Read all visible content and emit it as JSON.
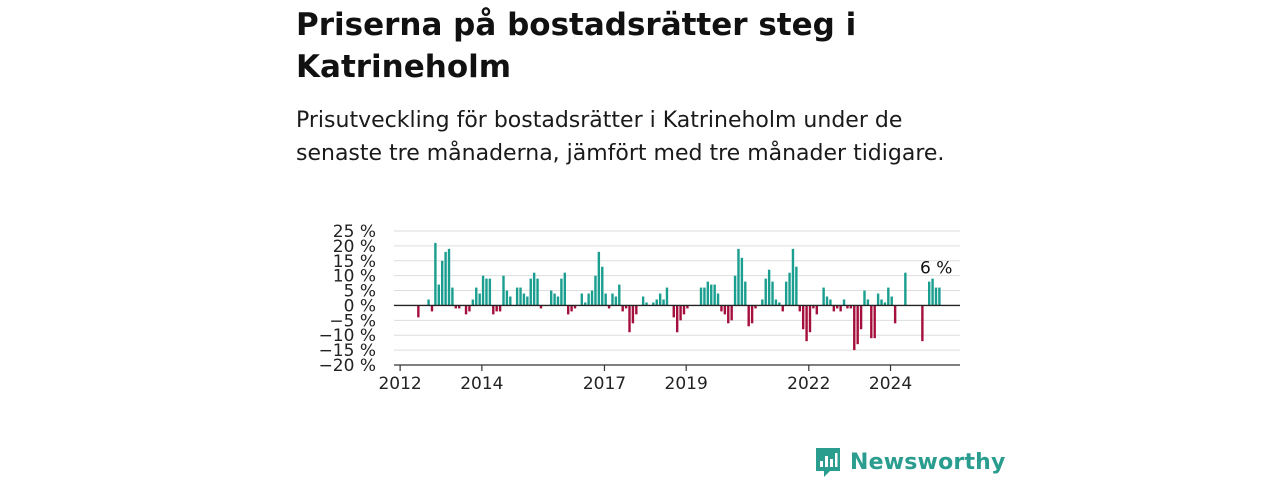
{
  "header": {
    "title": "Priserna på bostadsrätter steg i Katrineholm",
    "subtitle": "Prisutveckling för bostadsrätter i Katrineholm under de senaste tre månaderna, jämfört med tre månader tidigare."
  },
  "brand": {
    "name": "Newsworthy"
  },
  "colors": {
    "positive": "#1a9e8f",
    "negative": "#a50f3d",
    "axis": "#333333",
    "grid": "#dddddd",
    "brand": "#2a9d8f"
  },
  "chart_data": {
    "type": "bar",
    "ylim": [
      -20,
      25
    ],
    "y_ticks": [
      25,
      20,
      15,
      10,
      5,
      0,
      -5,
      -10,
      -15,
      -20
    ],
    "y_tick_labels": [
      "25 %",
      "20 %",
      "15 %",
      "10 %",
      "5 %",
      "0 %",
      "−5 %",
      "−10 %",
      "−15 %",
      "−20 %"
    ],
    "x_tick_labels": [
      {
        "label": "2012",
        "value": 2012.0
      },
      {
        "label": "2014",
        "value": 2014.0
      },
      {
        "label": "2017",
        "value": 2017.0
      },
      {
        "label": "2019",
        "value": 2019.0
      },
      {
        "label": "2022",
        "value": 2022.0
      },
      {
        "label": "2024",
        "value": 2024.0
      }
    ],
    "xlim": [
      2011.85,
      2025.7
    ],
    "annotation": {
      "text": "6 %",
      "value": 6
    },
    "series": [
      {
        "start_month": "2012-06",
        "values": [
          -4,
          0,
          0,
          2,
          -2,
          21,
          7,
          15,
          18,
          19,
          6,
          -1,
          -1,
          0,
          -3,
          -2,
          2,
          6,
          4,
          10,
          9,
          9,
          -3,
          -2,
          -2,
          10,
          5,
          3,
          0,
          6,
          6,
          4,
          3,
          9,
          11,
          9,
          -1,
          0,
          0,
          5,
          4,
          3,
          9,
          11,
          -3,
          -2,
          -1,
          0,
          4,
          1,
          4,
          5,
          10,
          18,
          13,
          4,
          -1,
          4,
          3,
          7,
          -2,
          -1,
          -9,
          -6,
          -3,
          0,
          3,
          1,
          0,
          1,
          2,
          4,
          2,
          6,
          0,
          -4,
          -9,
          -5,
          -3,
          -1,
          0,
          0,
          0,
          6,
          6,
          8,
          7,
          7,
          4,
          -2,
          -3,
          -6,
          -5,
          10,
          19,
          16,
          8,
          -7,
          -6,
          -1,
          0,
          2,
          9,
          12,
          8,
          2,
          1,
          -2,
          8,
          11,
          19,
          13,
          -2,
          -8,
          -12,
          -9,
          -1,
          -3,
          0,
          6,
          3,
          2,
          -2,
          -1,
          -2,
          2,
          -1,
          -1,
          -15,
          -13,
          -8,
          5,
          2,
          -11,
          -11,
          4,
          2,
          1,
          6,
          3,
          -6,
          0,
          0,
          11,
          0,
          0,
          0,
          0,
          -12,
          0,
          8,
          9,
          6,
          6
        ]
      }
    ]
  }
}
